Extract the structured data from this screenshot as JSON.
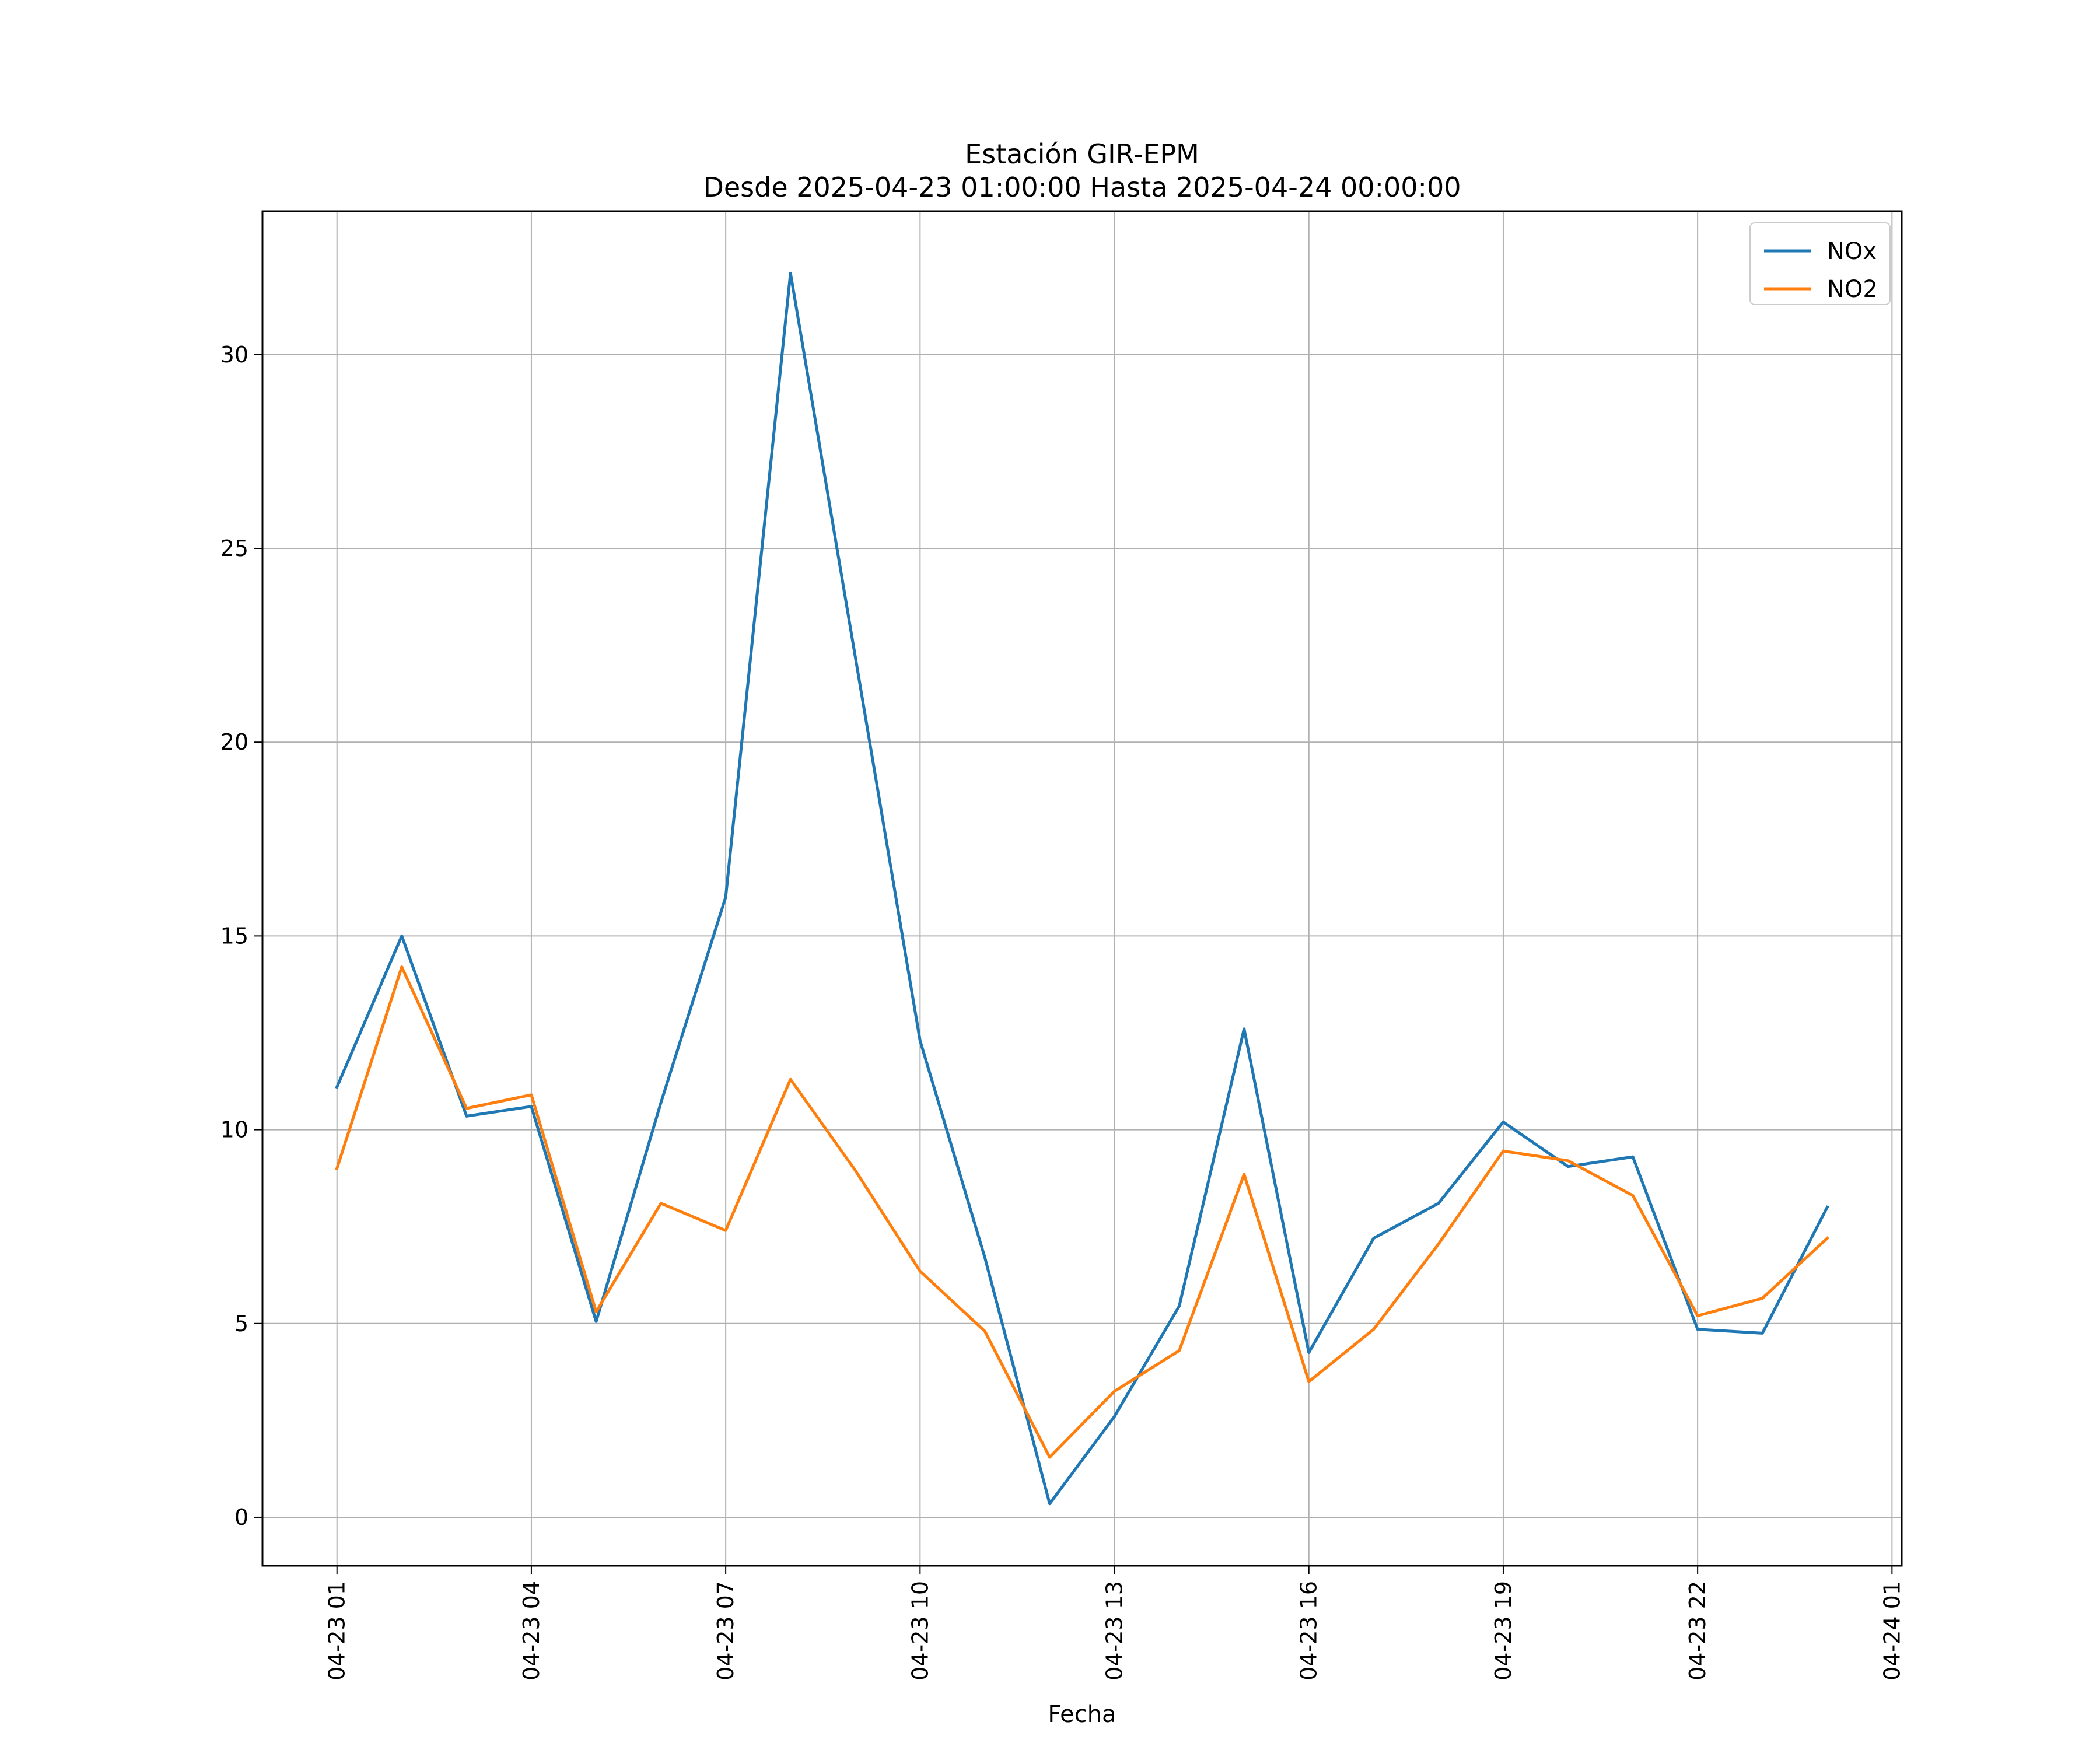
{
  "chart_data": {
    "type": "line",
    "title": "Estación GIR-EPM",
    "subtitle": "Desde 2025-04-23 01:00:00 Hasta 2025-04-24 00:00:00",
    "xlabel": "Fecha",
    "ylabel": "",
    "x": [
      "2025-04-23 01:00",
      "2025-04-23 02:00",
      "2025-04-23 03:00",
      "2025-04-23 04:00",
      "2025-04-23 05:00",
      "2025-04-23 06:00",
      "2025-04-23 07:00",
      "2025-04-23 08:00",
      "2025-04-23 09:00",
      "2025-04-23 10:00",
      "2025-04-23 11:00",
      "2025-04-23 12:00",
      "2025-04-23 13:00",
      "2025-04-23 14:00",
      "2025-04-23 15:00",
      "2025-04-23 16:00",
      "2025-04-23 17:00",
      "2025-04-23 18:00",
      "2025-04-23 19:00",
      "2025-04-23 20:00",
      "2025-04-23 21:00",
      "2025-04-23 22:00",
      "2025-04-23 23:00",
      "2025-04-24 00:00"
    ],
    "series": [
      {
        "name": "NOx",
        "color": "#1f77b4",
        "values": [
          11.1,
          15.0,
          10.35,
          10.6,
          5.05,
          10.7,
          16.0,
          32.1,
          22.2,
          12.3,
          6.7,
          0.35,
          2.6,
          5.45,
          12.6,
          4.25,
          7.2,
          8.1,
          10.2,
          9.05,
          9.3,
          4.85,
          4.75,
          8.0
        ]
      },
      {
        "name": "NO2",
        "color": "#ff7f0e",
        "values": [
          9.0,
          14.2,
          10.55,
          10.9,
          5.3,
          8.1,
          7.4,
          11.3,
          8.95,
          6.35,
          4.8,
          1.55,
          3.25,
          4.3,
          8.85,
          3.5,
          4.85,
          7.05,
          9.45,
          9.2,
          8.3,
          5.2,
          5.65,
          7.2
        ]
      }
    ],
    "xticks": [
      {
        "x": "2025-04-23 01:00",
        "label": "04-23 01"
      },
      {
        "x": "2025-04-23 04:00",
        "label": "04-23 04"
      },
      {
        "x": "2025-04-23 07:00",
        "label": "04-23 07"
      },
      {
        "x": "2025-04-23 10:00",
        "label": "04-23 10"
      },
      {
        "x": "2025-04-23 13:00",
        "label": "04-23 13"
      },
      {
        "x": "2025-04-23 16:00",
        "label": "04-23 16"
      },
      {
        "x": "2025-04-23 19:00",
        "label": "04-23 19"
      },
      {
        "x": "2025-04-23 22:00",
        "label": "04-23 22"
      },
      {
        "x": "2025-04-24 01:00",
        "label": "04-24 01"
      }
    ],
    "yticks": [
      0,
      5,
      10,
      15,
      20,
      25,
      30
    ],
    "xlim": [
      "2025-04-22 23:51",
      "2025-04-24 01:09"
    ],
    "ylim": [
      -1.25,
      33.7
    ],
    "grid": true,
    "legend": "top-right"
  }
}
